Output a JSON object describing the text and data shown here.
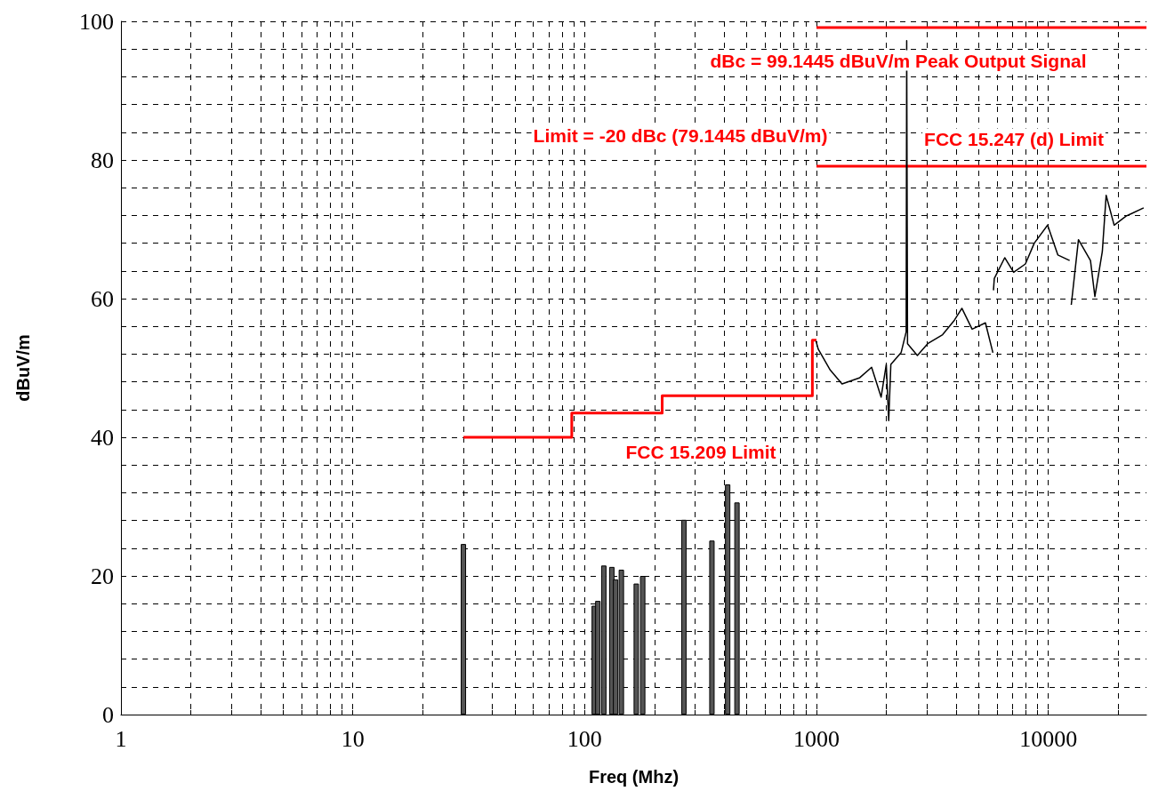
{
  "chart_data": {
    "type": "line",
    "xlabel": "Freq (Mhz)",
    "ylabel": "dBuV/m",
    "log": "x",
    "grid": true,
    "marker": "none",
    "line_style": "solid",
    "xlim": [
      1,
      26500
    ],
    "ylim": [
      0,
      100
    ],
    "xticks": [
      1,
      {
        "value": 2,
        "label": null
      },
      {
        "value": 3,
        "label": null
      },
      {
        "value": 4,
        "label": null
      },
      {
        "value": 5,
        "label": null
      },
      {
        "value": 6,
        "label": null
      },
      {
        "value": 7,
        "label": null
      },
      {
        "value": 8,
        "label": null
      },
      {
        "value": 9,
        "label": null
      },
      10,
      {
        "value": 20,
        "label": null
      },
      {
        "value": 30,
        "label": null
      },
      {
        "value": 40,
        "label": null
      },
      {
        "value": 50,
        "label": null
      },
      {
        "value": 60,
        "label": null
      },
      {
        "value": 70,
        "label": null
      },
      {
        "value": 80,
        "label": null
      },
      {
        "value": 90,
        "label": null
      },
      100,
      {
        "value": 200,
        "label": null
      },
      {
        "value": 300,
        "label": null
      },
      {
        "value": 400,
        "label": null
      },
      {
        "value": 500,
        "label": null
      },
      {
        "value": 600,
        "label": null
      },
      {
        "value": 700,
        "label": null
      },
      {
        "value": 800,
        "label": null
      },
      {
        "value": 900,
        "label": null
      },
      1000,
      {
        "value": 2000,
        "label": null
      },
      {
        "value": 3000,
        "label": null
      },
      {
        "value": 4000,
        "label": null
      },
      {
        "value": 5000,
        "label": null
      },
      {
        "value": 6000,
        "label": null
      },
      {
        "value": 7000,
        "label": null
      },
      {
        "value": 8000,
        "label": null
      },
      {
        "value": 9000,
        "label": null
      },
      10000,
      {
        "value": 20000,
        "label": null
      }
    ],
    "yticks": [
      0,
      {
        "value": 4,
        "label": null
      },
      {
        "value": 8,
        "label": null
      },
      {
        "value": 12,
        "label": null
      },
      {
        "value": 16,
        "label": null
      },
      20,
      {
        "value": 24,
        "label": null
      },
      {
        "value": 28,
        "label": null
      },
      {
        "value": 32,
        "label": null
      },
      {
        "value": 36,
        "label": null
      },
      40,
      {
        "value": 44,
        "label": null
      },
      {
        "value": 48,
        "label": null
      },
      {
        "value": 52,
        "label": null
      },
      {
        "value": 56,
        "label": null
      },
      60,
      {
        "value": 64,
        "label": null
      },
      {
        "value": 68,
        "label": null
      },
      {
        "value": 72,
        "label": null
      },
      {
        "value": 76,
        "label": null
      },
      80,
      {
        "value": 84,
        "label": null
      },
      {
        "value": 88,
        "label": null
      },
      {
        "value": 92,
        "label": null
      },
      {
        "value": 96,
        "label": null
      },
      100
    ],
    "series": [
      {
        "type": "bar",
        "color": "#555555",
        "x": [
          30,
          110,
          114,
          121,
          131,
          136,
          144,
          167,
          178,
          268,
          354,
          414,
          454
        ],
        "values": [
          24.6,
          15.7,
          16.4,
          21.5,
          21.3,
          19.5,
          20.9,
          18.9,
          20.0,
          28.1,
          25.1,
          33.2,
          30.6
        ]
      },
      {
        "type": "step",
        "color": "#ff0000",
        "x": [
          30,
          88,
          216,
          960,
          1000
        ],
        "values": [
          40,
          43.5,
          46,
          54,
          54
        ]
      },
      {
        "color": "#ff0000",
        "x": [
          1000,
          26500
        ],
        "values": [
          99.1,
          99.1
        ]
      },
      {
        "color": "#ff0000",
        "x": [
          1000,
          26500
        ],
        "values": [
          79.1,
          79.1
        ]
      },
      {
        "color": "#000000",
        "x": [
          995,
          1018,
          1146,
          1289,
          1538,
          1729,
          1900,
          2000,
          2049,
          2093,
          2317,
          2437,
          2450,
          2470,
          2724,
          3017,
          3500,
          3937,
          4239,
          4692,
          5355,
          5768
        ],
        "values": [
          53.9,
          52.7,
          49.7,
          47.7,
          48.6,
          50.1,
          45.8,
          50.5,
          42.4,
          50.5,
          52.2,
          55.2,
          97.2,
          53.5,
          51.8,
          53.5,
          54.8,
          56.9,
          58.6,
          55.6,
          56.5,
          52.2
        ]
      },
      {
        "color": "#000000",
        "x": [
          5800,
          5847,
          6486,
          7086,
          7963,
          8696,
          9930,
          10990,
          12360
        ],
        "values": [
          61.2,
          62.9,
          65.9,
          63.8,
          65.0,
          68.0,
          70.6,
          66.3,
          65.5
        ]
      },
      {
        "color": "#000000",
        "x": [
          12560,
          13490,
          15200,
          15880,
          17100,
          17760,
          19230,
          21650,
          25780
        ],
        "values": [
          59.1,
          68.5,
          65.5,
          60.3,
          66.8,
          74.9,
          70.6,
          71.9,
          73.1
        ]
      }
    ],
    "annotations": [
      "dBc = 99.1445 dBuV/m Peak Output Signal",
      "Limit = -20 dBc (79.1445 dBuV/m)",
      "FCC 15.247 (d) Limit",
      "FCC 15.209 Limit"
    ]
  }
}
